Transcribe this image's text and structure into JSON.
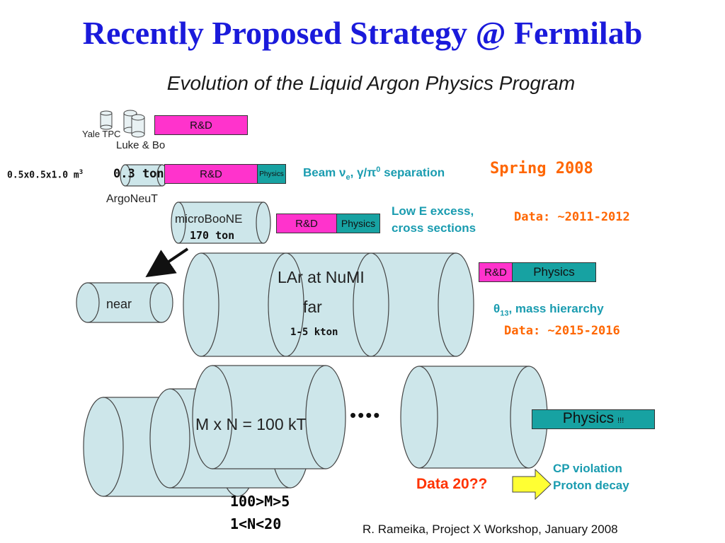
{
  "slide": {
    "title": "Recently Proposed Strategy @ Fermilab",
    "subtitle": "Evolution of the Liquid Argon Physics Program",
    "footer": "R. Rameika, Project X Workshop, January 2008"
  },
  "rows": {
    "yale": {
      "label": "Yale TPC",
      "sublabel": "Luke & Bo",
      "rd_label": "R&D"
    },
    "argoneut": {
      "dimensions": "0.5x0.5x1.0 m",
      "dimensions_sup": "3",
      "mass": "0.3 ton",
      "name": "ArgoNeuT",
      "rd_label": "R&D",
      "physics_label": "Physics",
      "goal_beam": "Beam ",
      "goal_nu": "ν",
      "goal_nu_sub": "e",
      "goal_mid": ", γ/π",
      "goal_pi_sup": "0",
      "goal_end": " separation",
      "date": "Spring 2008"
    },
    "microboone": {
      "name": "microBooNE",
      "mass": "170 ton",
      "rd_label": "R&D",
      "physics_label": "Physics",
      "goal_line1": "Low E excess,",
      "goal_line2": "cross sections",
      "date": "Data: ~2011-2012"
    },
    "numi": {
      "name": "LAr at NuMI",
      "far_label": "far",
      "near_label": "near",
      "mass": "1-5 kton",
      "rd_label": "R&D",
      "physics_label": "Physics",
      "goal_theta": "θ",
      "goal_theta_sub": "13",
      "goal_rest": ", mass hierarchy",
      "date": "Data: ~2015-2016"
    },
    "large": {
      "formula": "M x N = 100 kT",
      "ellipsis": "••••",
      "physics_label": "Physics",
      "physics_suffix": "!!!",
      "date": "Data 20??",
      "goal_line1": "CP violation",
      "goal_line2": "Proton decay",
      "constraint_m": "100>M>5",
      "constraint_n": "1<N<20"
    }
  },
  "colors": {
    "title": "#1a1adb",
    "cylinder_fill": "#cde6ea",
    "rd_fill": "#ff33cc",
    "physics_fill": "#17a2a2",
    "goal_text": "#1a9cb0",
    "date_text": "#ff6600",
    "arrow_fill": "#ffff33"
  }
}
